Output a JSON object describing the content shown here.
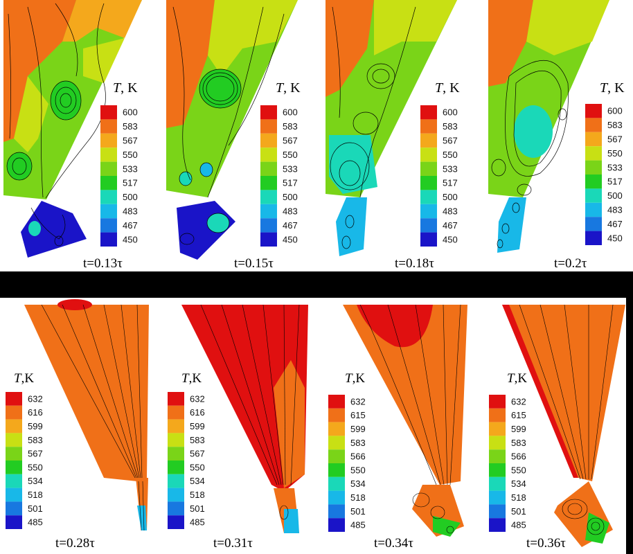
{
  "top_row": {
    "legend_title_symbol": "T",
    "legend_title_unit": ", K",
    "legend_ticks": [
      "600",
      "583",
      "567",
      "550",
      "533",
      "517",
      "500",
      "483",
      "467",
      "450"
    ],
    "panels": [
      {
        "time_label": "t=0.13τ"
      },
      {
        "time_label": "t=0.15τ"
      },
      {
        "time_label": "t=0.18τ"
      },
      {
        "time_label": "t=0.2τ"
      }
    ]
  },
  "bottom_row": {
    "legend_title_symbol": "T",
    "legend_title_unit": ",K",
    "panels": [
      {
        "time_label": "t=0.28τ",
        "legend_ticks": [
          "632",
          "616",
          "599",
          "583",
          "567",
          "550",
          "534",
          "518",
          "501",
          "485"
        ]
      },
      {
        "time_label": "t=0.31τ",
        "legend_ticks": [
          "632",
          "616",
          "599",
          "583",
          "567",
          "550",
          "534",
          "518",
          "501",
          "485"
        ]
      },
      {
        "time_label": "t=0.34τ",
        "legend_ticks": [
          "632",
          "615",
          "599",
          "583",
          "566",
          "550",
          "534",
          "518",
          "501",
          "485"
        ]
      },
      {
        "time_label": "t=0.36τ",
        "legend_ticks": [
          "632",
          "615",
          "599",
          "583",
          "566",
          "550",
          "534",
          "518",
          "501",
          "485"
        ]
      }
    ]
  },
  "colors": {
    "colormap": [
      "#e01010",
      "#f07018",
      "#f4a81c",
      "#c8e014",
      "#7ad418",
      "#22cc22",
      "#1ad8b8",
      "#18b8e8",
      "#1878e0",
      "#1a14c8"
    ],
    "separator": "#000000"
  }
}
